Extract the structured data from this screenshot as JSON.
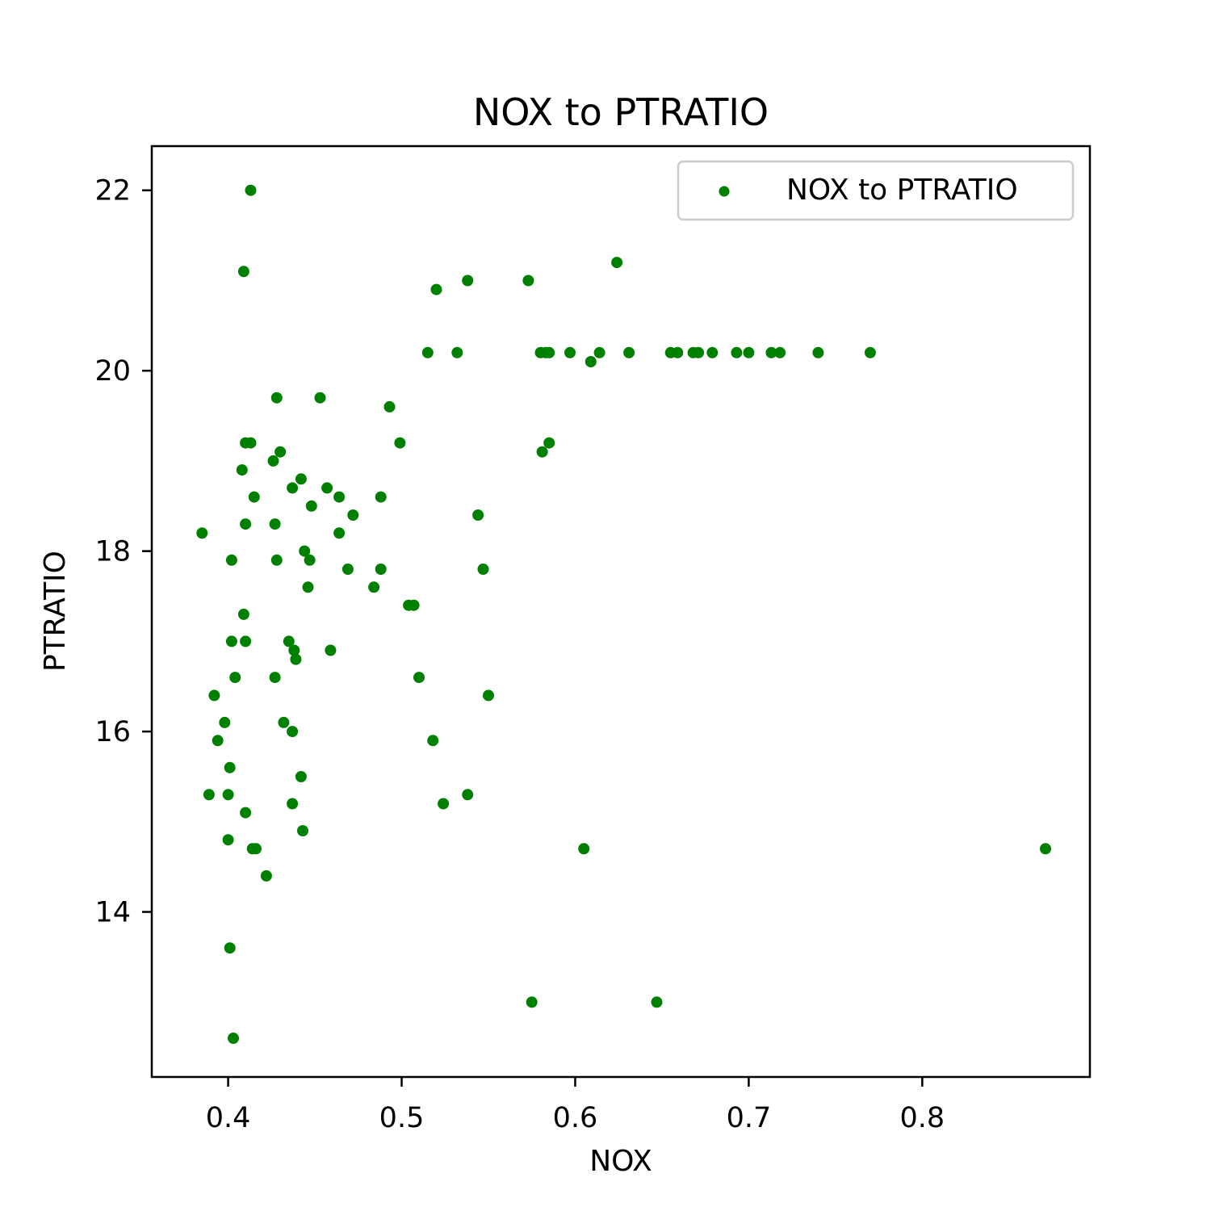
{
  "chart_data": {
    "type": "scatter",
    "title": "NOX to PTRATIO",
    "xlabel": "NOX",
    "ylabel": "PTRATIO",
    "xlim": [
      0.356,
      0.8966
    ],
    "ylim": [
      12.17,
      22.49
    ],
    "xticks": [
      0.4,
      0.5,
      0.6,
      0.7,
      0.8
    ],
    "yticks": [
      14,
      16,
      18,
      20,
      22
    ],
    "xtick_labels": [
      "0.4",
      "0.5",
      "0.6",
      "0.7",
      "0.8"
    ],
    "ytick_labels": [
      "14",
      "16",
      "18",
      "20",
      "22"
    ],
    "grid": false,
    "legend_position": "top-right",
    "series": [
      {
        "name": "NOX to PTRATIO",
        "color": "#008000",
        "points": [
          [
            0.413,
            22.0
          ],
          [
            0.409,
            21.1
          ],
          [
            0.624,
            21.2
          ],
          [
            0.52,
            20.9
          ],
          [
            0.538,
            21.0
          ],
          [
            0.573,
            21.0
          ],
          [
            0.515,
            20.2
          ],
          [
            0.532,
            20.2
          ],
          [
            0.58,
            20.2
          ],
          [
            0.583,
            20.2
          ],
          [
            0.585,
            20.2
          ],
          [
            0.597,
            20.2
          ],
          [
            0.609,
            20.1
          ],
          [
            0.614,
            20.2
          ],
          [
            0.631,
            20.2
          ],
          [
            0.655,
            20.2
          ],
          [
            0.659,
            20.2
          ],
          [
            0.668,
            20.2
          ],
          [
            0.671,
            20.2
          ],
          [
            0.679,
            20.2
          ],
          [
            0.693,
            20.2
          ],
          [
            0.7,
            20.2
          ],
          [
            0.713,
            20.2
          ],
          [
            0.718,
            20.2
          ],
          [
            0.74,
            20.2
          ],
          [
            0.77,
            20.2
          ],
          [
            0.428,
            19.7
          ],
          [
            0.453,
            19.7
          ],
          [
            0.493,
            19.6
          ],
          [
            0.499,
            19.2
          ],
          [
            0.41,
            19.2
          ],
          [
            0.413,
            19.2
          ],
          [
            0.43,
            19.1
          ],
          [
            0.581,
            19.1
          ],
          [
            0.585,
            19.2
          ],
          [
            0.426,
            19.0
          ],
          [
            0.408,
            18.9
          ],
          [
            0.442,
            18.8
          ],
          [
            0.437,
            18.7
          ],
          [
            0.457,
            18.7
          ],
          [
            0.415,
            18.6
          ],
          [
            0.464,
            18.6
          ],
          [
            0.488,
            18.6
          ],
          [
            0.448,
            18.5
          ],
          [
            0.472,
            18.4
          ],
          [
            0.544,
            18.4
          ],
          [
            0.41,
            18.3
          ],
          [
            0.427,
            18.3
          ],
          [
            0.385,
            18.2
          ],
          [
            0.464,
            18.2
          ],
          [
            0.444,
            18.0
          ],
          [
            0.402,
            17.9
          ],
          [
            0.428,
            17.9
          ],
          [
            0.447,
            17.9
          ],
          [
            0.469,
            17.8
          ],
          [
            0.488,
            17.8
          ],
          [
            0.547,
            17.8
          ],
          [
            0.446,
            17.6
          ],
          [
            0.484,
            17.6
          ],
          [
            0.504,
            17.4
          ],
          [
            0.507,
            17.4
          ],
          [
            0.409,
            17.3
          ],
          [
            0.402,
            17.0
          ],
          [
            0.41,
            17.0
          ],
          [
            0.435,
            17.0
          ],
          [
            0.438,
            16.9
          ],
          [
            0.459,
            16.9
          ],
          [
            0.439,
            16.8
          ],
          [
            0.404,
            16.6
          ],
          [
            0.427,
            16.6
          ],
          [
            0.51,
            16.6
          ],
          [
            0.392,
            16.4
          ],
          [
            0.55,
            16.4
          ],
          [
            0.398,
            16.1
          ],
          [
            0.432,
            16.1
          ],
          [
            0.437,
            16.0
          ],
          [
            0.394,
            15.9
          ],
          [
            0.518,
            15.9
          ],
          [
            0.401,
            15.6
          ],
          [
            0.442,
            15.5
          ],
          [
            0.389,
            15.3
          ],
          [
            0.4,
            15.3
          ],
          [
            0.538,
            15.3
          ],
          [
            0.437,
            15.2
          ],
          [
            0.524,
            15.2
          ],
          [
            0.41,
            15.1
          ],
          [
            0.443,
            14.9
          ],
          [
            0.4,
            14.8
          ],
          [
            0.414,
            14.7
          ],
          [
            0.416,
            14.7
          ],
          [
            0.605,
            14.7
          ],
          [
            0.871,
            14.7
          ],
          [
            0.422,
            14.4
          ],
          [
            0.401,
            13.6
          ],
          [
            0.575,
            13.0
          ],
          [
            0.647,
            13.0
          ],
          [
            0.403,
            12.6
          ]
        ]
      }
    ]
  }
}
